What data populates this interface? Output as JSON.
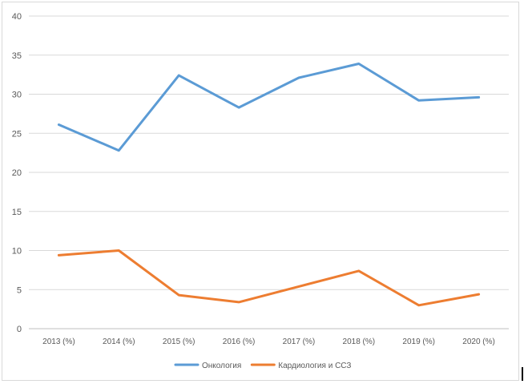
{
  "chart_data": {
    "type": "line",
    "categories": [
      "2013 (%)",
      "2014 (%)",
      "2015 (%)",
      "2016 (%)",
      "2017 (%)",
      "2018 (%)",
      "2019 (%)",
      "2020 (%)"
    ],
    "series": [
      {
        "name": "Онкология",
        "values": [
          26.1,
          22.8,
          32.4,
          28.3,
          32.1,
          33.9,
          29.2,
          29.6
        ],
        "color": "#5b9bd5"
      },
      {
        "name": "Кардиология и ССЗ",
        "values": [
          9.4,
          10.0,
          4.3,
          3.4,
          5.4,
          7.4,
          3.0,
          4.4
        ],
        "color": "#ed7d31"
      }
    ],
    "ylim": [
      0,
      40
    ],
    "yticks": [
      "0",
      "5",
      "10",
      "15",
      "20",
      "25",
      "30",
      "35",
      "40"
    ],
    "grid": true,
    "legend_position": "bottom",
    "title": "",
    "xlabel": "",
    "ylabel": ""
  }
}
